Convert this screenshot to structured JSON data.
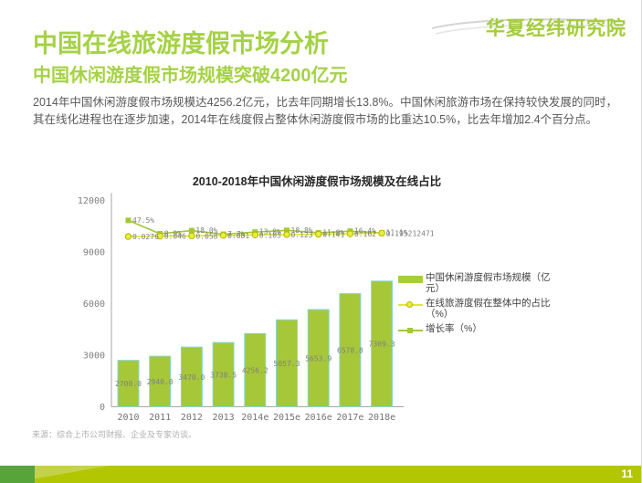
{
  "logo": {
    "text": "华夏经纬研究院"
  },
  "header": {
    "title": "中国在线旅游度假市场分析",
    "subtitle": "中国休闲游度假市场规模突破4200亿元",
    "body": "2014年中国休闲游度假市场规模达4256.2亿元，比去年同期增长13.8%。中国休闲旅游市场在保持较快发展的同时，其在线化进程也在逐步加速，2014年在线度假占整体休闲游度假市场的比重达10.5%，比去年增加2.4个百分点。"
  },
  "chart_data": {
    "type": "bar",
    "title": "2010-2018年中国休闲游度假市场规模及在线占比",
    "categories": [
      "2010",
      "2011",
      "2012",
      "2013",
      "2014e",
      "2015e",
      "2016e",
      "2017e",
      "2018e"
    ],
    "series": [
      {
        "name": "中国休闲游度假市场规模（亿元）",
        "type": "bar",
        "values": [
          2700.0,
          2940.0,
          3470.0,
          3738.5,
          4256.2,
          5057.3,
          5653.9,
          6578.8,
          7309.3
        ],
        "labels": [
          "2700.0",
          "2940.0",
          "3470.0",
          "3738.5",
          "4256.2",
          "5057.3",
          "5653.9",
          "6578.8",
          "7309.3"
        ]
      },
      {
        "name": "在线旅游度假在整体中的占比（%）",
        "type": "line",
        "values": [
          0.0276,
          0.046,
          0.058,
          0.081,
          0.105,
          0.123,
          0.141,
          0.162,
          0.195212471
        ],
        "labels": [
          "0.0276",
          "0.046",
          "0.058",
          "0.081",
          "0.105",
          "0.123",
          "0.141",
          "0.162",
          "0.195212471"
        ]
      },
      {
        "name": "增长率（%）",
        "type": "line",
        "values": [
          47.5,
          8.9,
          18.0,
          7.7,
          13.8,
          18.8,
          11.8,
          16.4,
          11.1
        ],
        "labels": [
          "47.5%",
          "8.9%",
          "18.0%",
          "7.7%",
          "13.8%",
          "18.8%",
          "11.8%",
          "16.4%",
          "11.1%"
        ]
      }
    ],
    "y_ticks": [
      0,
      3000,
      6000,
      9000,
      12000
    ],
    "ylim": [
      0,
      12000
    ],
    "legend_position": "right",
    "grid": false
  },
  "source_note": "来源：综合上市公司财报、企业及专家访谈。",
  "page_number": "11",
  "colors": {
    "accent_green": "#a5d246",
    "bar_fill": "#a6c838",
    "bar_stroke": "#86d7d5",
    "share_line": "#e0e636",
    "growth_line": "#a3c838",
    "footer_bar": "#b3c602",
    "footer_accent": "#57a43b",
    "label_gray": "#7f7f7f"
  }
}
